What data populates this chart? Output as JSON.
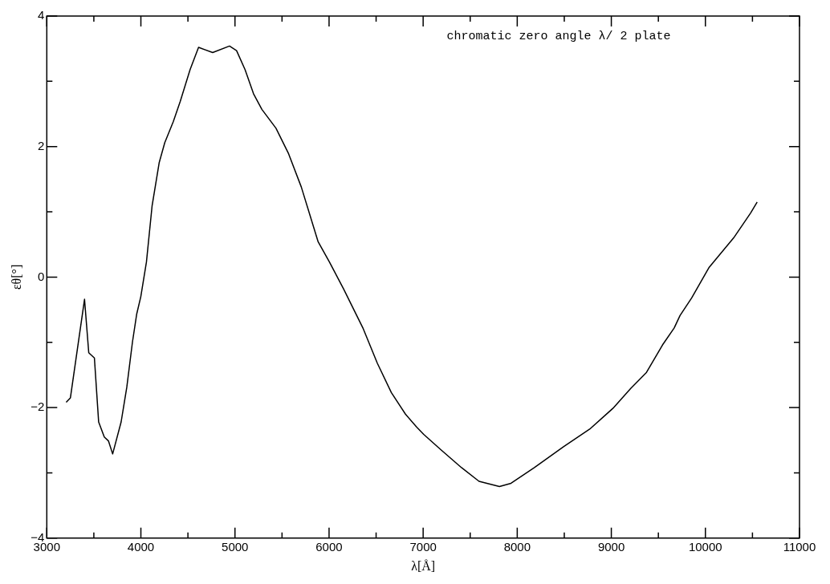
{
  "chart_data": {
    "type": "line",
    "xlabel": "λ[Å]",
    "ylabel": "εθ[°]",
    "annotations": [
      "chromatic zero angle λ/ 2 plate"
    ],
    "xlim": [
      3000,
      11000
    ],
    "ylim": [
      -4,
      4
    ],
    "xticks": [
      3000,
      {
        "value": 3500,
        "label": null
      },
      4000,
      {
        "value": 4500,
        "label": null
      },
      5000,
      {
        "value": 5500,
        "label": null
      },
      6000,
      {
        "value": 6500,
        "label": null
      },
      7000,
      {
        "value": 7500,
        "label": null
      },
      8000,
      {
        "value": 8500,
        "label": null
      },
      9000,
      {
        "value": 9500,
        "label": null
      },
      10000,
      {
        "value": 10500,
        "label": null
      },
      11000
    ],
    "yticks": [
      {
        "value": -4,
        "label": "−4"
      },
      {
        "value": -3,
        "label": null
      },
      {
        "value": -2,
        "label": "−2"
      },
      {
        "value": -1,
        "label": null
      },
      0,
      {
        "value": 1,
        "label": null
      },
      2,
      {
        "value": 3,
        "label": null
      },
      4
    ],
    "grid": false,
    "legend": false,
    "marker": "none",
    "line_style": "solid",
    "series": [
      {
        "color": "#000000",
        "x": [
          3206,
          3251,
          3401,
          3446,
          3506,
          3551,
          3611,
          3655,
          3700,
          3790,
          3850,
          3910,
          3955,
          3999,
          4059,
          4119,
          4194,
          4254,
          4344,
          4418,
          4523,
          4613,
          4763,
          4942,
          5017,
          5107,
          5197,
          5286,
          5436,
          5570,
          5705,
          5884,
          6004,
          6154,
          6363,
          6513,
          6662,
          6812,
          6932,
          7006,
          7192,
          7408,
          7594,
          7811,
          7934,
          8182,
          8492,
          8770,
          9018,
          9204,
          9374,
          9544,
          9668,
          9730,
          9854,
          10040,
          10300,
          10480,
          10550
        ],
        "values": [
          -1.92,
          -1.85,
          -0.34,
          -1.16,
          -1.24,
          -2.22,
          -2.45,
          -2.51,
          -2.71,
          -2.22,
          -1.69,
          -1.0,
          -0.57,
          -0.3,
          0.23,
          1.09,
          1.75,
          2.06,
          2.38,
          2.69,
          3.18,
          3.52,
          3.44,
          3.54,
          3.47,
          3.18,
          2.81,
          2.57,
          2.28,
          1.89,
          1.38,
          0.54,
          0.23,
          -0.18,
          -0.79,
          -1.32,
          -1.77,
          -2.1,
          -2.3,
          -2.41,
          -2.65,
          -2.92,
          -3.13,
          -3.21,
          -3.16,
          -2.92,
          -2.6,
          -2.33,
          -2.01,
          -1.71,
          -1.46,
          -1.04,
          -0.78,
          -0.59,
          -0.32,
          0.15,
          0.6,
          0.98,
          1.15
        ]
      }
    ]
  }
}
